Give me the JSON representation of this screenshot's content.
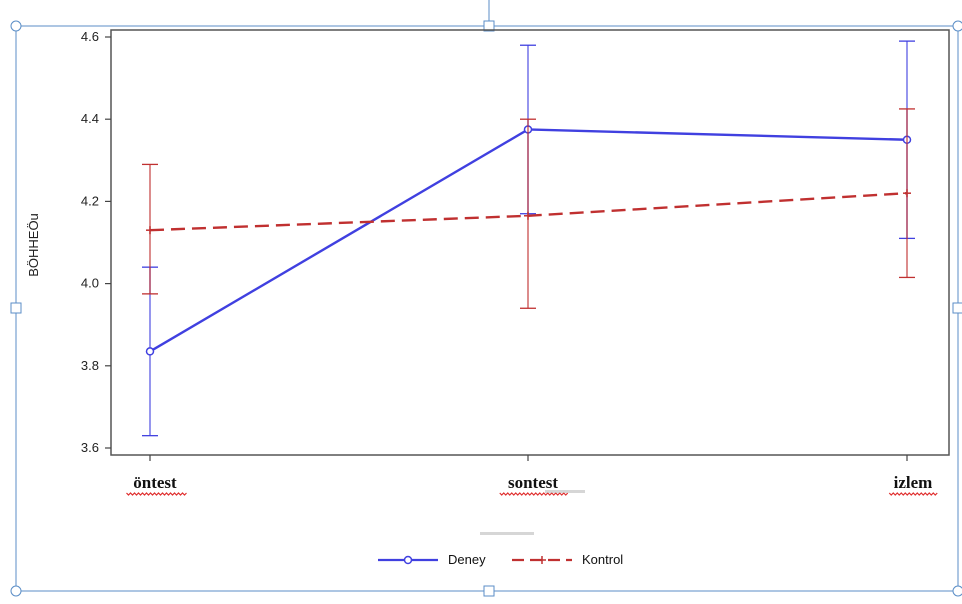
{
  "chart_data": {
    "type": "line",
    "categories": [
      "öntest",
      "sontest",
      "izlem"
    ],
    "ylabel": "BÖHHEÖu",
    "ylim": [
      3.6,
      4.6
    ],
    "yticks": [
      3.6,
      3.8,
      4.0,
      4.2,
      4.4,
      4.6
    ],
    "grid": false,
    "legend_position": "bottom-center",
    "series": [
      {
        "name": "Deney",
        "color": "#4040e0",
        "style": "solid",
        "marker": "circle",
        "values": [
          3.835,
          4.375,
          4.35
        ],
        "error_low": [
          3.63,
          4.17,
          4.11
        ],
        "error_high": [
          4.04,
          4.58,
          4.59
        ]
      },
      {
        "name": "Kontrol",
        "color": "#c03030",
        "style": "dashed",
        "marker": "plus",
        "values": [
          4.13,
          4.165,
          4.22
        ],
        "error_low": [
          3.975,
          3.94,
          4.015
        ],
        "error_high": [
          4.29,
          4.4,
          4.425
        ]
      }
    ]
  }
}
